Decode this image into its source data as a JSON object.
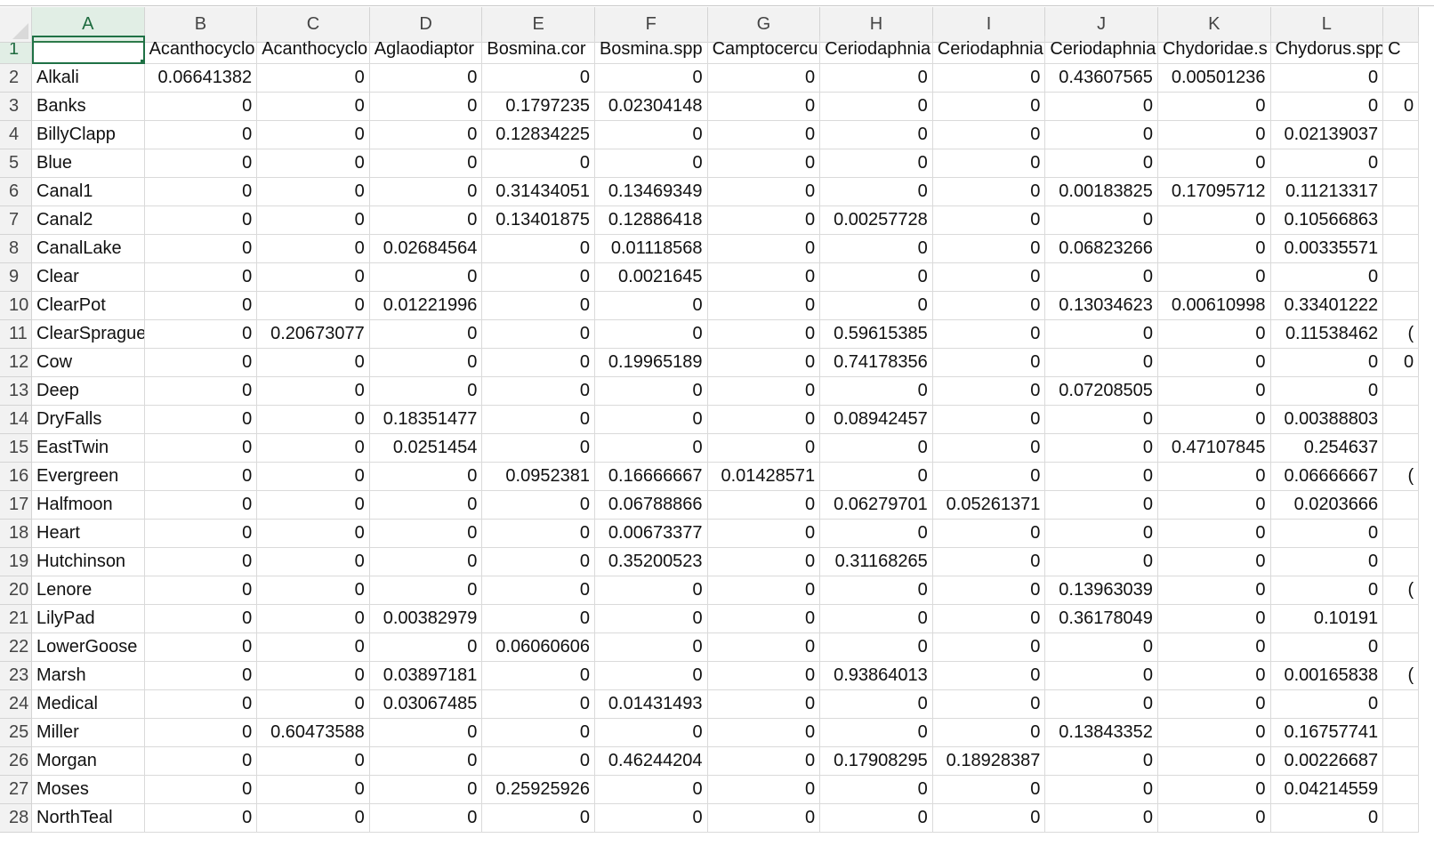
{
  "spreadsheet": {
    "selected_cell": "A1",
    "columns": [
      "A",
      "B",
      "C",
      "D",
      "E",
      "F",
      "G",
      "H",
      "I",
      "J",
      "K",
      "L",
      ""
    ],
    "rows": [
      {
        "num": "1",
        "cells": [
          "",
          "Acanthocyclo",
          "Acanthocyclo",
          "Aglaodiaptor",
          "Bosmina.cor",
          "Bosmina.spp",
          "Camptocercu",
          "Ceriodaphnia",
          "Ceriodaphnia",
          "Ceriodaphnia",
          "Chydoridae.s",
          "Chydorus.spp",
          "C"
        ]
      },
      {
        "num": "2",
        "cells": [
          "Alkali",
          "0.06641382",
          "0",
          "0",
          "0",
          "0",
          "0",
          "0",
          "0",
          "0.43607565",
          "0.00501236",
          "0",
          ""
        ]
      },
      {
        "num": "3",
        "cells": [
          "Banks",
          "0",
          "0",
          "0",
          "0.1797235",
          "0.02304148",
          "0",
          "0",
          "0",
          "0",
          "0",
          "0",
          "0"
        ]
      },
      {
        "num": "4",
        "cells": [
          "BillyClapp",
          "0",
          "0",
          "0",
          "0.12834225",
          "0",
          "0",
          "0",
          "0",
          "0",
          "0",
          "0.02139037",
          ""
        ]
      },
      {
        "num": "5",
        "cells": [
          "Blue",
          "0",
          "0",
          "0",
          "0",
          "0",
          "0",
          "0",
          "0",
          "0",
          "0",
          "0",
          ""
        ]
      },
      {
        "num": "6",
        "cells": [
          "Canal1",
          "0",
          "0",
          "0",
          "0.31434051",
          "0.13469349",
          "0",
          "0",
          "0",
          "0.00183825",
          "0.17095712",
          "0.11213317",
          ""
        ]
      },
      {
        "num": "7",
        "cells": [
          "Canal2",
          "0",
          "0",
          "0",
          "0.13401875",
          "0.12886418",
          "0",
          "0.00257728",
          "0",
          "0",
          "0",
          "0.10566863",
          ""
        ]
      },
      {
        "num": "8",
        "cells": [
          "CanalLake",
          "0",
          "0",
          "0.02684564",
          "0",
          "0.01118568",
          "0",
          "0",
          "0",
          "0.06823266",
          "0",
          "0.00335571",
          ""
        ]
      },
      {
        "num": "9",
        "cells": [
          "Clear",
          "0",
          "0",
          "0",
          "0",
          "0.0021645",
          "0",
          "0",
          "0",
          "0",
          "0",
          "0",
          ""
        ]
      },
      {
        "num": "10",
        "cells": [
          "ClearPot",
          "0",
          "0",
          "0.01221996",
          "0",
          "0",
          "0",
          "0",
          "0",
          "0.13034623",
          "0.00610998",
          "0.33401222",
          ""
        ]
      },
      {
        "num": "11",
        "cells": [
          "ClearSprague",
          "0",
          "0.20673077",
          "0",
          "0",
          "0",
          "0",
          "0.59615385",
          "0",
          "0",
          "0",
          "0.11538462",
          "("
        ]
      },
      {
        "num": "12",
        "cells": [
          "Cow",
          "0",
          "0",
          "0",
          "0",
          "0.19965189",
          "0",
          "0.74178356",
          "0",
          "0",
          "0",
          "0",
          "0"
        ]
      },
      {
        "num": "13",
        "cells": [
          "Deep",
          "0",
          "0",
          "0",
          "0",
          "0",
          "0",
          "0",
          "0",
          "0.07208505",
          "0",
          "0",
          ""
        ]
      },
      {
        "num": "14",
        "cells": [
          "DryFalls",
          "0",
          "0",
          "0.18351477",
          "0",
          "0",
          "0",
          "0.08942457",
          "0",
          "0",
          "0",
          "0.00388803",
          ""
        ]
      },
      {
        "num": "15",
        "cells": [
          "EastTwin",
          "0",
          "0",
          "0.0251454",
          "0",
          "0",
          "0",
          "0",
          "0",
          "0",
          "0.47107845",
          "0.254637",
          ""
        ]
      },
      {
        "num": "16",
        "cells": [
          "Evergreen",
          "0",
          "0",
          "0",
          "0.0952381",
          "0.16666667",
          "0.01428571",
          "0",
          "0",
          "0",
          "0",
          "0.06666667",
          "("
        ]
      },
      {
        "num": "17",
        "cells": [
          "Halfmoon",
          "0",
          "0",
          "0",
          "0",
          "0.06788866",
          "0",
          "0.06279701",
          "0.05261371",
          "0",
          "0",
          "0.0203666",
          ""
        ]
      },
      {
        "num": "18",
        "cells": [
          "Heart",
          "0",
          "0",
          "0",
          "0",
          "0.00673377",
          "0",
          "0",
          "0",
          "0",
          "0",
          "0",
          ""
        ]
      },
      {
        "num": "19",
        "cells": [
          "Hutchinson",
          "0",
          "0",
          "0",
          "0",
          "0.35200523",
          "0",
          "0.31168265",
          "0",
          "0",
          "0",
          "0",
          ""
        ]
      },
      {
        "num": "20",
        "cells": [
          "Lenore",
          "0",
          "0",
          "0",
          "0",
          "0",
          "0",
          "0",
          "0",
          "0.13963039",
          "0",
          "0",
          "("
        ]
      },
      {
        "num": "21",
        "cells": [
          "LilyPad",
          "0",
          "0",
          "0.00382979",
          "0",
          "0",
          "0",
          "0",
          "0",
          "0.36178049",
          "0",
          "0.10191",
          ""
        ]
      },
      {
        "num": "22",
        "cells": [
          "LowerGoose",
          "0",
          "0",
          "0",
          "0.06060606",
          "0",
          "0",
          "0",
          "0",
          "0",
          "0",
          "0",
          ""
        ]
      },
      {
        "num": "23",
        "cells": [
          "Marsh",
          "0",
          "0",
          "0.03897181",
          "0",
          "0",
          "0",
          "0.93864013",
          "0",
          "0",
          "0",
          "0.00165838",
          "("
        ]
      },
      {
        "num": "24",
        "cells": [
          "Medical",
          "0",
          "0",
          "0.03067485",
          "0",
          "0.01431493",
          "0",
          "0",
          "0",
          "0",
          "0",
          "0",
          ""
        ]
      },
      {
        "num": "25",
        "cells": [
          "Miller",
          "0",
          "0.60473588",
          "0",
          "0",
          "0",
          "0",
          "0",
          "0",
          "0.13843352",
          "0",
          "0.16757741",
          ""
        ]
      },
      {
        "num": "26",
        "cells": [
          "Morgan",
          "0",
          "0",
          "0",
          "0",
          "0.46244204",
          "0",
          "0.17908295",
          "0.18928387",
          "0",
          "0",
          "0.00226687",
          ""
        ]
      },
      {
        "num": "27",
        "cells": [
          "Moses",
          "0",
          "0",
          "0",
          "0.25925926",
          "0",
          "0",
          "0",
          "0",
          "0",
          "0",
          "0.04214559",
          ""
        ]
      },
      {
        "num": "28",
        "cells": [
          "NorthTeal",
          "0",
          "0",
          "0",
          "0",
          "0",
          "0",
          "0",
          "0",
          "0",
          "0",
          "0",
          ""
        ]
      }
    ]
  }
}
